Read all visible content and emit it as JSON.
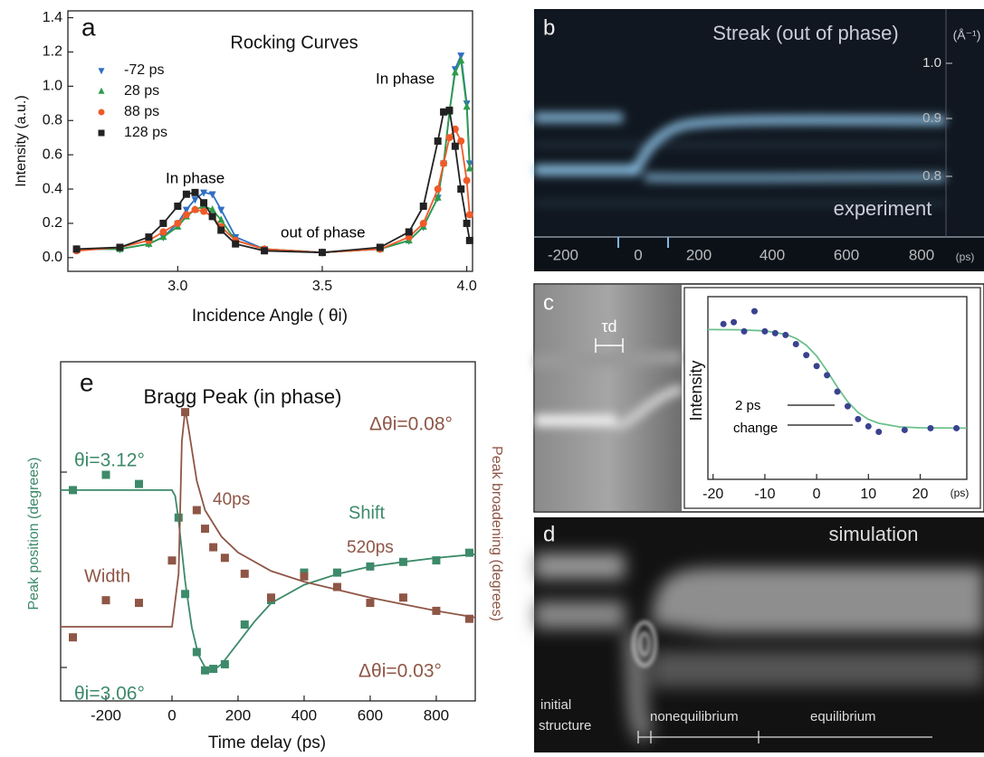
{
  "chart_data": [
    {
      "type": "line",
      "panel": "a",
      "title": "Rocking Curves",
      "xlabel": "Incidence Angle ( θi)",
      "ylabel": "Intensity (a.u.)",
      "x": [
        2.65,
        2.8,
        2.9,
        2.95,
        3.0,
        3.03,
        3.06,
        3.09,
        3.12,
        3.15,
        3.2,
        3.3,
        3.5,
        3.7,
        3.8,
        3.85,
        3.9,
        3.92,
        3.94,
        3.96,
        3.98,
        4.0,
        4.01
      ],
      "series": [
        {
          "name": "-72 ps",
          "color": "#2f6fc4",
          "marker": "v",
          "values": [
            0.05,
            0.05,
            0.08,
            0.12,
            0.2,
            0.28,
            0.34,
            0.38,
            0.37,
            0.28,
            0.12,
            0.05,
            0.03,
            0.05,
            0.1,
            0.18,
            0.35,
            0.55,
            0.85,
            1.1,
            1.18,
            0.9,
            0.55
          ]
        },
        {
          "name": "28  ps",
          "color": "#2e9b4a",
          "marker": "^",
          "values": [
            0.05,
            0.05,
            0.08,
            0.12,
            0.18,
            0.24,
            0.28,
            0.3,
            0.28,
            0.22,
            0.1,
            0.05,
            0.03,
            0.05,
            0.1,
            0.18,
            0.35,
            0.55,
            0.85,
            1.08,
            1.15,
            0.88,
            0.52
          ]
        },
        {
          "name": "88  ps",
          "color": "#f05a28",
          "marker": "o",
          "values": [
            0.04,
            0.06,
            0.1,
            0.15,
            0.2,
            0.25,
            0.28,
            0.27,
            0.24,
            0.18,
            0.1,
            0.05,
            0.03,
            0.05,
            0.12,
            0.2,
            0.4,
            0.55,
            0.7,
            0.75,
            0.68,
            0.45,
            0.25
          ]
        },
        {
          "name": "128 ps",
          "color": "#222222",
          "marker": "s",
          "values": [
            0.05,
            0.06,
            0.12,
            0.2,
            0.3,
            0.37,
            0.38,
            0.32,
            0.24,
            0.16,
            0.08,
            0.04,
            0.03,
            0.06,
            0.15,
            0.3,
            0.68,
            0.85,
            0.86,
            0.65,
            0.4,
            0.2,
            0.1
          ]
        }
      ],
      "xlim": [
        2.62,
        4.02
      ],
      "xticks": [
        {
          "value": 3,
          "label": "3.0"
        },
        3.5,
        {
          "value": 4,
          "label": "4.0"
        }
      ],
      "ylim": [
        -0.08,
        1.44
      ],
      "yticks": [
        {
          "value": 0,
          "label": "0.0"
        },
        0.2,
        0.4,
        0.6,
        0.8,
        {
          "value": 1,
          "label": "1.0"
        },
        1.2,
        1.4
      ],
      "legend": "upper left",
      "annotations": [
        {
          "text": "In phase",
          "color": "#000000"
        },
        {
          "text": "In phase",
          "color": "#000000"
        },
        {
          "text": "out of phase",
          "color": "#000000"
        }
      ]
    },
    {
      "type": "line",
      "ylabel": "Intensity",
      "xunit": "(ps)",
      "series": [
        {
          "color": "#3a428f",
          "marker": "o",
          "x": [
            -18,
            -16,
            -14,
            -12,
            -10,
            -8,
            -6,
            -4,
            -2,
            0,
            2,
            4,
            6,
            8,
            10,
            12,
            17,
            22,
            27
          ],
          "values": [
            0.85,
            0.86,
            0.81,
            0.92,
            0.81,
            0.8,
            0.79,
            0.74,
            0.68,
            0.62,
            0.57,
            0.48,
            0.4,
            0.33,
            0.29,
            0.26,
            0.27,
            0.28,
            0.28
          ],
          "fit_color": "#6cc08e",
          "fit_x": [
            -21,
            -15,
            -10,
            -6,
            -4,
            -2,
            0,
            2,
            4,
            6,
            8,
            10,
            12,
            16,
            20,
            29
          ],
          "fit_values": [
            0.82,
            0.819,
            0.813,
            0.794,
            0.772,
            0.734,
            0.675,
            0.594,
            0.505,
            0.425,
            0.366,
            0.328,
            0.307,
            0.287,
            0.282,
            0.28
          ]
        }
      ],
      "xlim": [
        -21,
        29
      ],
      "xticks": [
        -20,
        -10,
        0,
        10,
        20
      ],
      "ylim": [
        0,
        1
      ],
      "annotations": [
        {
          "text": "2 ps",
          "color": "#000000"
        },
        {
          "text": "change",
          "color": "#000000"
        }
      ]
    },
    {
      "type": "line",
      "panel": "e",
      "title": "Bragg Peak (in phase)",
      "xlabel": "Time delay (ps)",
      "ylabel": "Peak position (degrees)",
      "y2label": "Peak broadening (degrees)",
      "series": [
        {
          "name": "Shift",
          "color": "#3d8a6a",
          "marker": "s",
          "axis": "y",
          "x": [
            -300,
            -200,
            -100,
            20,
            40,
            75,
            100,
            125,
            160,
            220,
            300,
            400,
            500,
            600,
            700,
            800,
            900
          ],
          "values": [
            3.12,
            3.125,
            3.122,
            3.111,
            3.086,
            3.067,
            3.061,
            3.0615,
            3.063,
            3.076,
            3.084,
            3.093,
            3.093,
            3.095,
            3.0965,
            3.097,
            3.0995
          ],
          "fit_color": "#3d8a6a",
          "fit_x": [
            -337,
            0,
            10,
            20,
            40,
            60,
            80,
            100,
            125,
            150,
            200,
            250,
            300,
            400,
            500,
            600,
            700,
            800,
            918
          ],
          "fit_values": [
            3.12,
            3.12,
            3.118,
            3.11,
            3.09,
            3.075,
            3.066,
            3.062,
            3.061,
            3.063,
            3.07,
            3.077,
            3.083,
            3.089,
            3.0925,
            3.095,
            3.0965,
            3.0978,
            3.099
          ]
        },
        {
          "name": "Width",
          "color": "#8e5646",
          "marker": "s",
          "axis": "y2",
          "x": [
            -300,
            -200,
            -100,
            0,
            40,
            75,
            100,
            125,
            160,
            220,
            300,
            400,
            500,
            600,
            700,
            800,
            900
          ],
          "values": [
            -0.004,
            0.01,
            0.009,
            0.025,
            0.081,
            0.044,
            0.037,
            0.03,
            0.026,
            0.02,
            0.011,
            0.019,
            0.015,
            0.009,
            0.011,
            0.006,
            0.003
          ],
          "fit_color": "#8e5646",
          "fit_x": [
            -337,
            0,
            20,
            30,
            40,
            50,
            75,
            100,
            150,
            200,
            300,
            400,
            500,
            600,
            700,
            800,
            918
          ],
          "fit_values": [
            0,
            0,
            0.02,
            0.07,
            0.082,
            0.075,
            0.055,
            0.044,
            0.034,
            0.028,
            0.021,
            0.017,
            0.014,
            0.011,
            0.0085,
            0.006,
            0.0035
          ]
        }
      ],
      "xlim": [
        -337,
        918
      ],
      "xticks": [
        -200,
        0,
        200,
        400,
        600,
        800
      ],
      "ylim": [
        3.051,
        3.162
      ],
      "y2lim": [
        -0.028,
        0.1
      ],
      "annotations": [
        {
          "text": "θi=3.12°",
          "color": "#3d8a6a"
        },
        {
          "text": "θi=3.06°",
          "color": "#3d8a6a"
        },
        {
          "text": "Δθi=0.08°",
          "color": "#8e5646"
        },
        {
          "text": "Δθi=0.03°",
          "color": "#8e5646"
        },
        {
          "text": "40ps",
          "color": "#8e5646"
        },
        {
          "text": "520ps",
          "color": "#8e5646"
        }
      ]
    }
  ],
  "panel_b": {
    "label": "b",
    "title": "Streak (out of phase)",
    "y_unit": "(Å⁻¹)",
    "y_labels": [
      "1.0",
      "0.9",
      "0.8"
    ],
    "x_labels": [
      "-200",
      "0",
      "200",
      "400",
      "600",
      "800"
    ],
    "x_unit": "(ps)",
    "caption": "experiment"
  },
  "panel_c": {
    "label": "c",
    "marker": "τd"
  },
  "panel_d": {
    "label": "d",
    "caption": "simulation",
    "regions": [
      "initial",
      "structure",
      "nonequilibrium",
      "equilibrium"
    ]
  }
}
